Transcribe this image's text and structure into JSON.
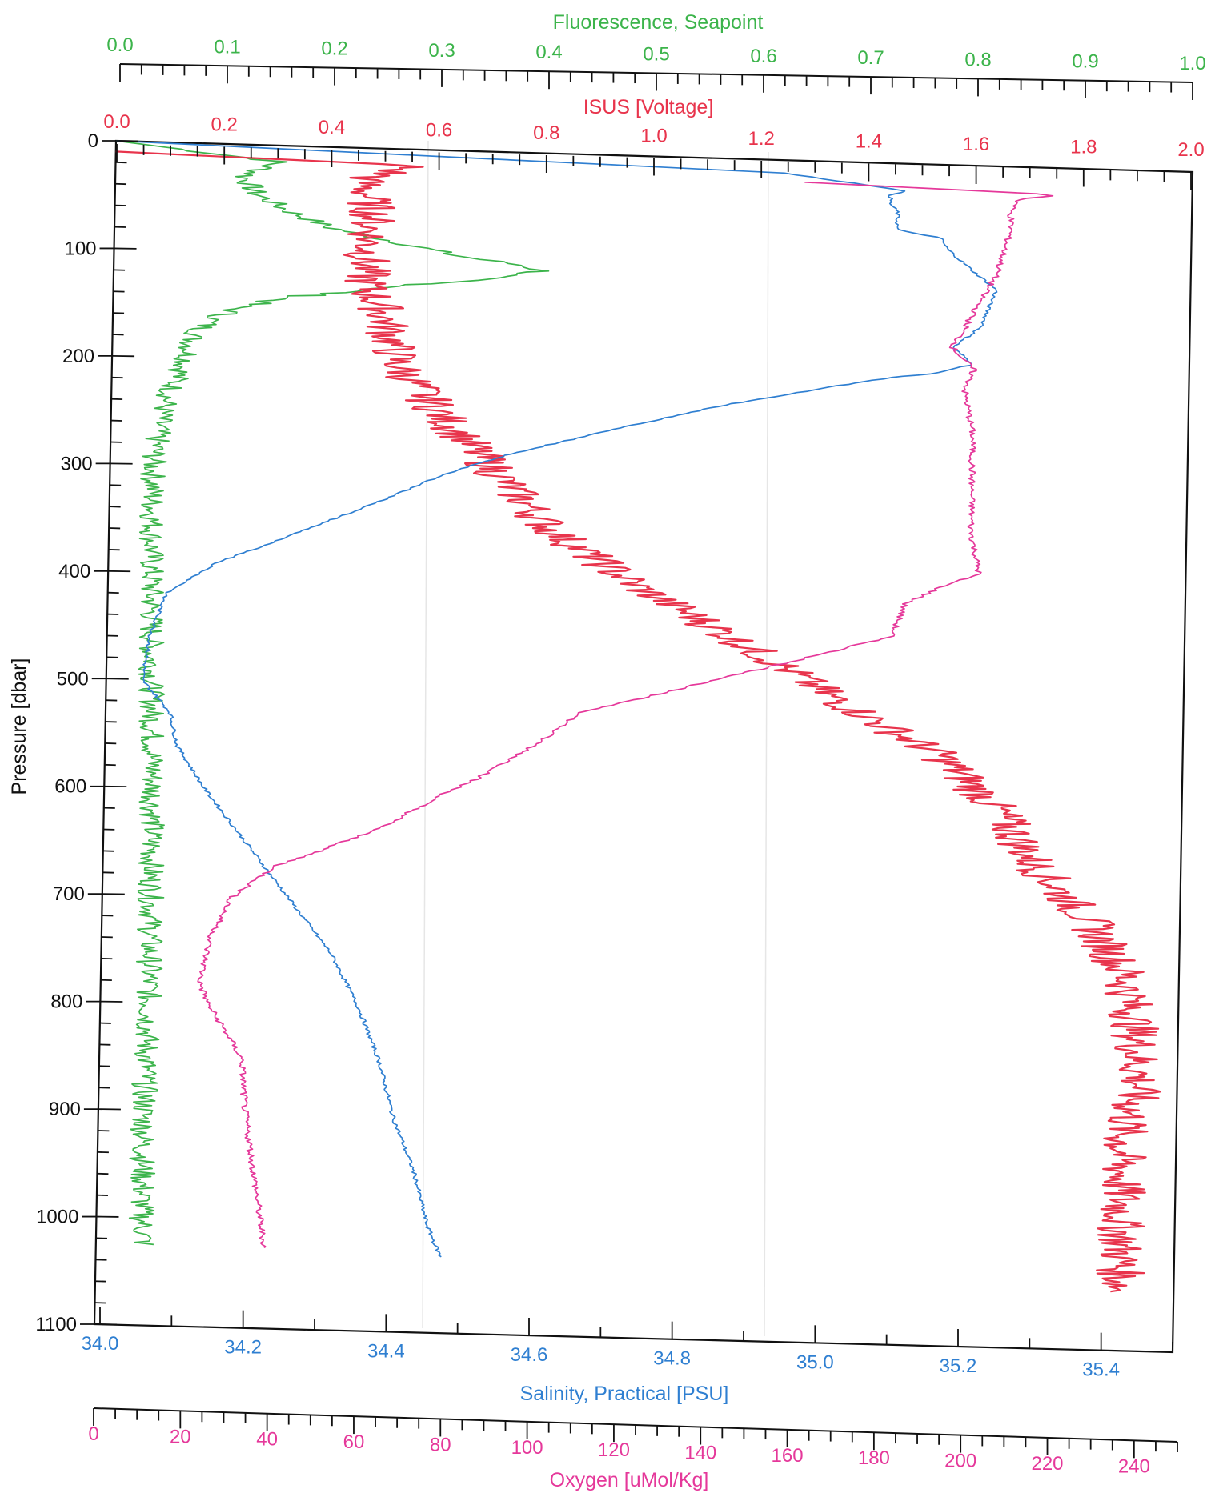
{
  "chart_data": {
    "type": "line",
    "title": "",
    "colors": {
      "fluorescence": "#3cb44b",
      "isus": "#e8344c",
      "salinity": "#2f7fd1",
      "oxygen": "#e5389a",
      "axis": "#111111",
      "grid": "#e6e6e6"
    },
    "grid": false,
    "y_axis": {
      "label": "Pressure [dbar]",
      "range": [
        0,
        1100
      ],
      "ticks": [
        0,
        100,
        200,
        300,
        400,
        500,
        600,
        700,
        800,
        900,
        1000,
        1100
      ],
      "tick_labels": [
        "0",
        "100",
        "200",
        "300",
        "400",
        "500",
        "600",
        "700",
        "800",
        "900",
        "1000",
        "1100"
      ],
      "inverted": true
    },
    "x_axes": [
      {
        "id": "fluorescence",
        "label": "Fluorescence, Seapoint",
        "position": "top-outer",
        "range": [
          0.0,
          1.0
        ],
        "tick_labels": [
          "0.0",
          "0.1",
          "0.2",
          "0.3",
          "0.4",
          "0.5",
          "0.6",
          "0.7",
          "0.8",
          "0.9",
          "1.0"
        ]
      },
      {
        "id": "isus",
        "label": "ISUS [Voltage]",
        "position": "top-inner",
        "range": [
          0.0,
          2.0
        ],
        "tick_labels": [
          "0.0",
          "0.2",
          "0.4",
          "0.6",
          "0.8",
          "1.0",
          "1.2",
          "1.4",
          "1.6",
          "1.8",
          "2.0"
        ]
      },
      {
        "id": "salinity",
        "label": "Salinity, Practical [PSU]",
        "position": "bottom-inner",
        "range": [
          34.0,
          35.5
        ],
        "tick_labels": [
          "34.0",
          "34.2",
          "34.4",
          "34.6",
          "34.8",
          "35.0",
          "35.2",
          "35.4"
        ]
      },
      {
        "id": "oxygen",
        "label": "Oxygen [uMol/Kg]",
        "position": "bottom-outer",
        "range": [
          0,
          250
        ],
        "tick_labels": [
          "0",
          "20",
          "40",
          "60",
          "80",
          "100",
          "120",
          "140",
          "160",
          "180",
          "200",
          "220",
          "240"
        ]
      }
    ],
    "series": [
      {
        "name": "Fluorescence, Seapoint",
        "axis": "fluorescence",
        "noise": 0.012,
        "points": [
          [
            0,
            0.0
          ],
          [
            15,
            0.15
          ],
          [
            30,
            0.12
          ],
          [
            45,
            0.13
          ],
          [
            60,
            0.16
          ],
          [
            75,
            0.2
          ],
          [
            88,
            0.27
          ],
          [
            98,
            0.32
          ],
          [
            105,
            0.38
          ],
          [
            110,
            0.4
          ],
          [
            115,
            0.36
          ],
          [
            120,
            0.33
          ],
          [
            130,
            0.25
          ],
          [
            140,
            0.17
          ],
          [
            150,
            0.12
          ],
          [
            165,
            0.09
          ],
          [
            180,
            0.075
          ],
          [
            200,
            0.07
          ],
          [
            230,
            0.055
          ],
          [
            260,
            0.045
          ],
          [
            300,
            0.04
          ],
          [
            400,
            0.04
          ],
          [
            500,
            0.042
          ],
          [
            600,
            0.045
          ],
          [
            700,
            0.045
          ],
          [
            800,
            0.045
          ],
          [
            900,
            0.042
          ],
          [
            1000,
            0.042
          ],
          [
            1025,
            0.045
          ]
        ]
      },
      {
        "name": "ISUS [Voltage]",
        "axis": "isus",
        "noise": 0.045,
        "points": [
          [
            10,
            0.0
          ],
          [
            15,
            0.55
          ],
          [
            30,
            0.46
          ],
          [
            60,
            0.48
          ],
          [
            100,
            0.47
          ],
          [
            130,
            0.47
          ],
          [
            150,
            0.5
          ],
          [
            200,
            0.53
          ],
          [
            250,
            0.62
          ],
          [
            280,
            0.68
          ],
          [
            300,
            0.72
          ],
          [
            350,
            0.82
          ],
          [
            400,
            0.98
          ],
          [
            430,
            1.1
          ],
          [
            470,
            1.25
          ],
          [
            500,
            1.35
          ],
          [
            550,
            1.55
          ],
          [
            600,
            1.66
          ],
          [
            650,
            1.73
          ],
          [
            700,
            1.83
          ],
          [
            750,
            1.9
          ],
          [
            800,
            1.92
          ],
          [
            850,
            1.93
          ],
          [
            900,
            1.9
          ],
          [
            950,
            1.9
          ],
          [
            1000,
            1.9
          ],
          [
            1045,
            1.9
          ]
        ]
      },
      {
        "name": "Salinity, Practical [PSU]",
        "axis": "salinity",
        "noise": 0.003,
        "points": [
          [
            0,
            34.0
          ],
          [
            12,
            34.93
          ],
          [
            25,
            35.1
          ],
          [
            30,
            35.08
          ],
          [
            38,
            35.08
          ],
          [
            45,
            35.09
          ],
          [
            62,
            35.09
          ],
          [
            68,
            35.15
          ],
          [
            78,
            35.16
          ],
          [
            100,
            35.2
          ],
          [
            115,
            35.23
          ],
          [
            130,
            35.22
          ],
          [
            150,
            35.21
          ],
          [
            170,
            35.17
          ],
          [
            185,
            35.2
          ],
          [
            195,
            35.14
          ],
          [
            200,
            35.08
          ],
          [
            210,
            35.0
          ],
          [
            230,
            34.85
          ],
          [
            250,
            34.73
          ],
          [
            280,
            34.56
          ],
          [
            300,
            34.47
          ],
          [
            330,
            34.37
          ],
          [
            360,
            34.26
          ],
          [
            390,
            34.15
          ],
          [
            420,
            34.08
          ],
          [
            460,
            34.06
          ],
          [
            500,
            34.05
          ],
          [
            530,
            34.09
          ],
          [
            560,
            34.1
          ],
          [
            600,
            34.14
          ],
          [
            650,
            34.2
          ],
          [
            700,
            34.26
          ],
          [
            750,
            34.32
          ],
          [
            800,
            34.36
          ],
          [
            850,
            34.39
          ],
          [
            900,
            34.41
          ],
          [
            950,
            34.44
          ],
          [
            1000,
            34.46
          ],
          [
            1030,
            34.48
          ]
        ]
      },
      {
        "name": "Oxygen [uMol/Kg]",
        "axis": "oxygen",
        "noise": 0.8,
        "points": [
          [
            20,
            160
          ],
          [
            25,
            220
          ],
          [
            30,
            210
          ],
          [
            40,
            208
          ],
          [
            60,
            208
          ],
          [
            100,
            205
          ],
          [
            120,
            202
          ],
          [
            150,
            198
          ],
          [
            170,
            195
          ],
          [
            190,
            200
          ],
          [
            210,
            198
          ],
          [
            250,
            200
          ],
          [
            300,
            200
          ],
          [
            340,
            200
          ],
          [
            380,
            202
          ],
          [
            390,
            195
          ],
          [
            410,
            185
          ],
          [
            440,
            182
          ],
          [
            460,
            165
          ],
          [
            500,
            128
          ],
          [
            520,
            110
          ],
          [
            550,
            100
          ],
          [
            580,
            88
          ],
          [
            600,
            78
          ],
          [
            630,
            65
          ],
          [
            650,
            53
          ],
          [
            670,
            40
          ],
          [
            700,
            30
          ],
          [
            740,
            25
          ],
          [
            780,
            23
          ],
          [
            800,
            25
          ],
          [
            830,
            30
          ],
          [
            850,
            33
          ],
          [
            900,
            34
          ],
          [
            950,
            36
          ],
          [
            1000,
            38
          ],
          [
            1025,
            39
          ]
        ]
      }
    ]
  }
}
